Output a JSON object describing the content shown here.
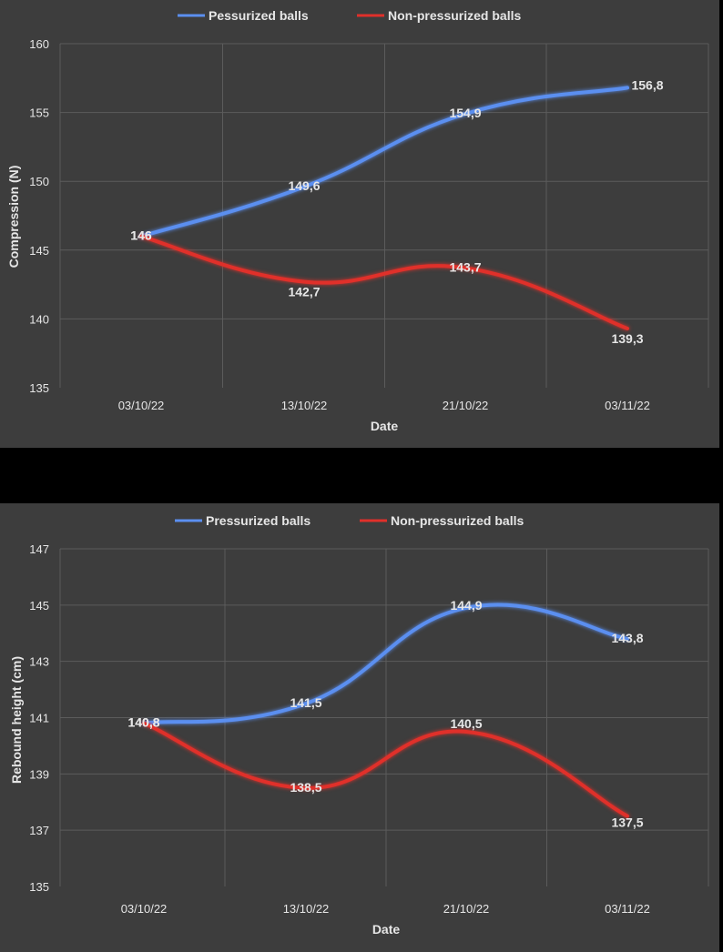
{
  "chart_data": [
    {
      "type": "line",
      "categories": [
        "03/10/22",
        "13/10/22",
        "21/10/22",
        "03/11/22"
      ],
      "series": [
        {
          "name": "Pessurized balls",
          "values": [
            146,
            149.6,
            154.9,
            156.8
          ],
          "labels": [
            "146",
            "149,6",
            "154,9",
            "156,8"
          ],
          "color": "#5b8ff0"
        },
        {
          "name": "Non-pressurized balls",
          "values": [
            146,
            142.7,
            143.7,
            139.3
          ],
          "labels": [
            "146",
            "142,7",
            "143,7",
            "139,3"
          ],
          "color": "#e0302a"
        }
      ],
      "yticks": [
        "135",
        "140",
        "145",
        "150",
        "155",
        "160"
      ],
      "ylim": [
        135,
        160
      ],
      "xlabel": "Date",
      "ylabel": "Compression (N)",
      "grid": true,
      "legend": "top"
    },
    {
      "type": "line",
      "categories": [
        "03/10/22",
        "13/10/22",
        "21/10/22",
        "03/11/22"
      ],
      "series": [
        {
          "name": "Pressurized balls",
          "values": [
            140.8,
            141.5,
            144.9,
            143.8
          ],
          "labels": [
            "140,8",
            "141,5",
            "144,9",
            "143,8"
          ],
          "color": "#5b8ff0"
        },
        {
          "name": "Non-pressurized balls",
          "values": [
            140.8,
            138.5,
            140.5,
            137.5
          ],
          "labels": [
            "140,8",
            "138,5",
            "140,5",
            "137,5"
          ],
          "color": "#e0302a"
        }
      ],
      "yticks": [
        "135",
        "137",
        "139",
        "141",
        "143",
        "145",
        "147"
      ],
      "ylim": [
        135,
        147
      ],
      "xlabel": "Date",
      "ylabel": "Rebound height (cm)",
      "grid": true,
      "legend": "top"
    }
  ]
}
